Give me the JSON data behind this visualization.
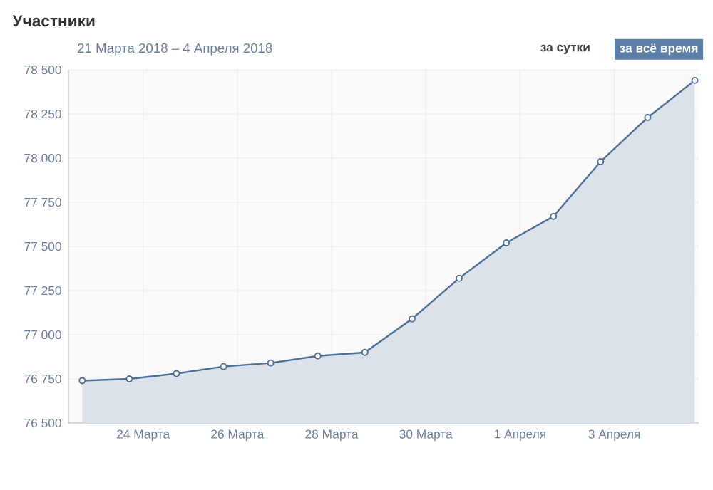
{
  "chart_data": {
    "type": "area",
    "title": "Участники",
    "subtitle": "21 Марта 2018 – 4 Апреля 2018",
    "annotations": [
      "за сутки",
      "за всё время"
    ],
    "x": [
      "2018-03-22T17:00",
      "2018-03-23T17:00",
      "2018-03-24T17:00",
      "2018-03-25T17:00",
      "2018-03-26T17:00",
      "2018-03-27T17:00",
      "2018-03-28T17:00",
      "2018-03-29T17:00",
      "2018-03-30T17:00",
      "2018-03-31T17:00",
      "2018-04-01T17:00",
      "2018-04-02T17:00",
      "2018-04-03T17:00",
      "2018-04-04T17:00"
    ],
    "values": [
      76740,
      76750,
      76780,
      76820,
      76840,
      76880,
      76900,
      77090,
      77320,
      77520,
      77670,
      77980,
      78230,
      78440
    ],
    "color": "#4f6f95",
    "marker": "circle",
    "grid": true,
    "xlim": [
      "2018-03-22T10:00",
      "2018-04-04T19:00"
    ],
    "xticks": [
      {
        "value": "2018-03-24",
        "label": "24 Марта"
      },
      {
        "value": "2018-03-26",
        "label": "26 Марта"
      },
      {
        "value": "2018-03-28",
        "label": "28 Марта"
      },
      {
        "value": "2018-03-30",
        "label": "30 Марта"
      },
      {
        "value": "2018-04-01",
        "label": "1 Апреля"
      },
      {
        "value": "2018-04-03",
        "label": "3 Апреля"
      }
    ],
    "ylim": [
      76500,
      78500
    ],
    "yticks": [
      {
        "value": 76500,
        "label": "76 500"
      },
      {
        "value": 76750,
        "label": "76 750"
      },
      {
        "value": 77000,
        "label": "77 000"
      },
      {
        "value": 77250,
        "label": "77 250"
      },
      {
        "value": 77500,
        "label": "77 500"
      },
      {
        "value": 77750,
        "label": "77 750"
      },
      {
        "value": 78000,
        "label": "78 000"
      },
      {
        "value": 78250,
        "label": "78 250"
      },
      {
        "value": 78500,
        "label": "78 500"
      }
    ]
  }
}
